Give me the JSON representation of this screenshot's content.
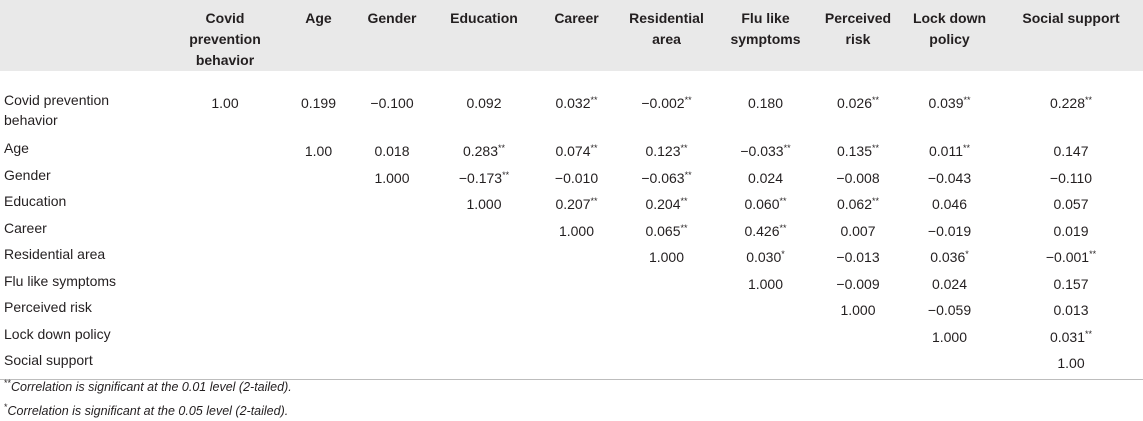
{
  "table": {
    "columns": [
      "Covid prevention behavior",
      "Age",
      "Gender",
      "Education",
      "Career",
      "Residential area",
      "Flu like symptoms",
      "Perceived risk",
      "Lock down policy",
      "Social support"
    ],
    "rows": [
      {
        "label": "Covid prevention behavior",
        "cells": [
          {
            "v": "1.00",
            "s": ""
          },
          {
            "v": "0.199",
            "s": ""
          },
          {
            "v": "−0.100",
            "s": ""
          },
          {
            "v": "0.092",
            "s": ""
          },
          {
            "v": "0.032",
            "s": "**"
          },
          {
            "v": "−0.002",
            "s": "**"
          },
          {
            "v": "0.180",
            "s": ""
          },
          {
            "v": "0.026",
            "s": "**"
          },
          {
            "v": "0.039",
            "s": "**"
          },
          {
            "v": "0.228",
            "s": "**"
          }
        ]
      },
      {
        "label": "Age",
        "cells": [
          {
            "v": "",
            "s": ""
          },
          {
            "v": "1.00",
            "s": ""
          },
          {
            "v": "0.018",
            "s": ""
          },
          {
            "v": "0.283",
            "s": "**"
          },
          {
            "v": "0.074",
            "s": "**"
          },
          {
            "v": "0.123",
            "s": "**"
          },
          {
            "v": "−0.033",
            "s": "**"
          },
          {
            "v": "0.135",
            "s": "**"
          },
          {
            "v": "0.011",
            "s": "**"
          },
          {
            "v": "0.147",
            "s": ""
          }
        ]
      },
      {
        "label": "Gender",
        "cells": [
          {
            "v": "",
            "s": ""
          },
          {
            "v": "",
            "s": ""
          },
          {
            "v": "1.000",
            "s": ""
          },
          {
            "v": "−0.173",
            "s": "**"
          },
          {
            "v": "−0.010",
            "s": ""
          },
          {
            "v": "−0.063",
            "s": "**"
          },
          {
            "v": "0.024",
            "s": ""
          },
          {
            "v": "−0.008",
            "s": ""
          },
          {
            "v": "−0.043",
            "s": ""
          },
          {
            "v": "−0.110",
            "s": ""
          }
        ]
      },
      {
        "label": "Education",
        "cells": [
          {
            "v": "",
            "s": ""
          },
          {
            "v": "",
            "s": ""
          },
          {
            "v": "",
            "s": ""
          },
          {
            "v": "1.000",
            "s": ""
          },
          {
            "v": "0.207",
            "s": "**"
          },
          {
            "v": "0.204",
            "s": "**"
          },
          {
            "v": "0.060",
            "s": "**"
          },
          {
            "v": "0.062",
            "s": "**"
          },
          {
            "v": "0.046",
            "s": ""
          },
          {
            "v": "0.057",
            "s": ""
          }
        ]
      },
      {
        "label": "Career",
        "cells": [
          {
            "v": "",
            "s": ""
          },
          {
            "v": "",
            "s": ""
          },
          {
            "v": "",
            "s": ""
          },
          {
            "v": "",
            "s": ""
          },
          {
            "v": "1.000",
            "s": ""
          },
          {
            "v": "0.065",
            "s": "**"
          },
          {
            "v": "0.426",
            "s": "**"
          },
          {
            "v": "0.007",
            "s": ""
          },
          {
            "v": "−0.019",
            "s": ""
          },
          {
            "v": "0.019",
            "s": ""
          }
        ]
      },
      {
        "label": "Residential area",
        "cells": [
          {
            "v": "",
            "s": ""
          },
          {
            "v": "",
            "s": ""
          },
          {
            "v": "",
            "s": ""
          },
          {
            "v": "",
            "s": ""
          },
          {
            "v": "",
            "s": ""
          },
          {
            "v": "1.000",
            "s": ""
          },
          {
            "v": "0.030",
            "s": "*"
          },
          {
            "v": "−0.013",
            "s": ""
          },
          {
            "v": "0.036",
            "s": "*"
          },
          {
            "v": "−0.001",
            "s": "**"
          }
        ]
      },
      {
        "label": "Flu like symptoms",
        "cells": [
          {
            "v": "",
            "s": ""
          },
          {
            "v": "",
            "s": ""
          },
          {
            "v": "",
            "s": ""
          },
          {
            "v": "",
            "s": ""
          },
          {
            "v": "",
            "s": ""
          },
          {
            "v": "",
            "s": ""
          },
          {
            "v": "1.000",
            "s": ""
          },
          {
            "v": "−0.009",
            "s": ""
          },
          {
            "v": "0.024",
            "s": ""
          },
          {
            "v": "0.157",
            "s": ""
          }
        ]
      },
      {
        "label": "Perceived risk",
        "cells": [
          {
            "v": "",
            "s": ""
          },
          {
            "v": "",
            "s": ""
          },
          {
            "v": "",
            "s": ""
          },
          {
            "v": "",
            "s": ""
          },
          {
            "v": "",
            "s": ""
          },
          {
            "v": "",
            "s": ""
          },
          {
            "v": "",
            "s": ""
          },
          {
            "v": "1.000",
            "s": ""
          },
          {
            "v": "−0.059",
            "s": ""
          },
          {
            "v": "0.013",
            "s": ""
          }
        ]
      },
      {
        "label": "Lock down policy",
        "cells": [
          {
            "v": "",
            "s": ""
          },
          {
            "v": "",
            "s": ""
          },
          {
            "v": "",
            "s": ""
          },
          {
            "v": "",
            "s": ""
          },
          {
            "v": "",
            "s": ""
          },
          {
            "v": "",
            "s": ""
          },
          {
            "v": "",
            "s": ""
          },
          {
            "v": "",
            "s": ""
          },
          {
            "v": "1.000",
            "s": ""
          },
          {
            "v": "0.031",
            "s": "**"
          }
        ]
      },
      {
        "label": "Social support",
        "cells": [
          {
            "v": "",
            "s": ""
          },
          {
            "v": "",
            "s": ""
          },
          {
            "v": "",
            "s": ""
          },
          {
            "v": "",
            "s": ""
          },
          {
            "v": "",
            "s": ""
          },
          {
            "v": "",
            "s": ""
          },
          {
            "v": "",
            "s": ""
          },
          {
            "v": "",
            "s": ""
          },
          {
            "v": "",
            "s": ""
          },
          {
            "v": "1.00",
            "s": ""
          }
        ]
      }
    ],
    "header_bg": "#e9e9e9"
  },
  "notes": {
    "note1_mark": "**",
    "note1_text": "Correlation is significant at the 0.01 level (2-tailed).",
    "note2_mark": "*",
    "note2_text": "Correlation is significant at the 0.05 level (2-tailed)."
  }
}
